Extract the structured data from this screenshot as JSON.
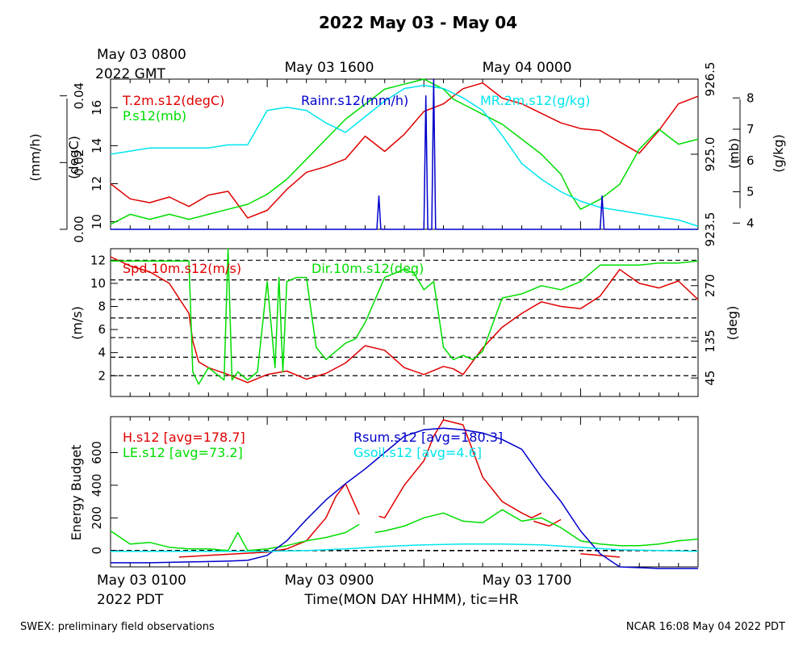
{
  "title": "2022 May 03 - May 04",
  "top_time_labels": {
    "first_line1": "May 03 0800",
    "first_line2": "2022 GMT",
    "second": "May 03 1600",
    "third": "May 04 0000"
  },
  "bottom_time_labels": {
    "first_line1": "May 03 0100",
    "first_line2": "2022 PDT",
    "second": "May 03 0900",
    "third": "May 03 1700"
  },
  "xlabel": "Time(MON DAY HHMM), tic=HR",
  "footer_left": "SWEX: preliminary field observations",
  "footer_right": "NCAR 16:08 May 04 2022 PDT",
  "colors": {
    "red": "#e00000",
    "green": "#00dd00",
    "blue": "#0000cc",
    "cyan": "#00e5ee",
    "black": "#000000"
  },
  "chart_data": [
    {
      "type": "line",
      "panel": "top",
      "time_unit": "hours since May 03 0100 PDT",
      "xlim": [
        0,
        30
      ],
      "axes": {
        "rain": {
          "label": "(mm/h)",
          "ylim": [
            0,
            0.045
          ],
          "ticks": [
            "0.00",
            "0.02",
            "0.04"
          ]
        },
        "temp": {
          "label": "(degC)",
          "ylim": [
            9.6,
            17.5
          ],
          "ticks": [
            "10",
            "12",
            "14",
            "16"
          ]
        },
        "pres": {
          "label": "(mb)",
          "ylim": [
            923.5,
            926.5
          ],
          "ticks": [
            "923.5",
            "925.0",
            "926.5"
          ]
        },
        "mr": {
          "label": "(g/kg)",
          "ylim": [
            3.8,
            8.6
          ],
          "ticks": [
            "4",
            "5",
            "6",
            "7",
            "8"
          ]
        }
      },
      "series": [
        {
          "name": "T.2m.s12(degC)",
          "axis": "temp",
          "color": "red",
          "x": [
            0,
            1,
            2,
            3,
            4,
            5,
            6,
            7,
            8,
            9,
            10,
            11,
            12,
            13,
            14,
            15,
            16,
            17,
            18,
            19,
            20,
            21,
            22,
            23,
            24,
            25,
            26,
            27,
            28,
            29,
            30
          ],
          "y": [
            12.0,
            11.2,
            11.0,
            11.3,
            10.8,
            11.4,
            11.6,
            10.2,
            10.6,
            11.7,
            12.6,
            12.9,
            13.3,
            14.5,
            13.7,
            14.6,
            15.8,
            16.2,
            17.0,
            17.3,
            16.5,
            16.2,
            15.7,
            15.2,
            14.9,
            14.8,
            14.2,
            13.6,
            14.8,
            16.2,
            16.6
          ]
        },
        {
          "name": "P.s12(mb)",
          "axis": "pres",
          "color": "green",
          "x": [
            0,
            1,
            2,
            3,
            4,
            5,
            6,
            7,
            8,
            9,
            10,
            11,
            12,
            13,
            14,
            15,
            16,
            17,
            17.5,
            18,
            19,
            20,
            21,
            22,
            23,
            23.5,
            24,
            25,
            26,
            27,
            28,
            29,
            30
          ],
          "y": [
            923.6,
            923.8,
            923.7,
            923.8,
            923.7,
            923.8,
            923.9,
            924.0,
            924.2,
            924.5,
            924.9,
            925.3,
            925.7,
            926.0,
            926.3,
            926.4,
            926.5,
            926.3,
            926.1,
            926.0,
            925.8,
            925.6,
            925.3,
            925.0,
            924.6,
            924.2,
            923.9,
            924.1,
            924.4,
            925.1,
            925.5,
            925.2,
            925.3
          ]
        },
        {
          "name": "MR.2m.s12(g/kg)",
          "axis": "mr",
          "color": "cyan",
          "x": [
            0,
            1,
            2,
            3,
            4,
            5,
            6,
            7,
            8,
            9,
            10,
            11,
            12,
            13,
            14,
            15,
            16,
            17,
            18,
            19,
            20,
            21,
            22,
            23,
            24,
            25,
            26,
            27,
            28,
            29,
            30
          ],
          "y": [
            6.2,
            6.3,
            6.4,
            6.4,
            6.4,
            6.4,
            6.5,
            6.5,
            7.6,
            7.7,
            7.6,
            7.2,
            6.9,
            7.4,
            7.9,
            8.3,
            8.4,
            8.3,
            8.0,
            7.6,
            6.8,
            5.9,
            5.4,
            5.0,
            4.7,
            4.5,
            4.4,
            4.3,
            4.2,
            4.1,
            3.9
          ]
        },
        {
          "name": "Rainr.s12(mm/h)",
          "axis": "rain",
          "color": "blue",
          "x": [
            0,
            13.6,
            13.7,
            13.8,
            16.0,
            16.1,
            16.2,
            16.4,
            16.5,
            16.6,
            25.0,
            25.1,
            25.2,
            30
          ],
          "y": [
            0,
            0,
            0.01,
            0,
            0,
            0.04,
            0,
            0,
            0.045,
            0,
            0,
            0.01,
            0,
            0
          ]
        }
      ],
      "legend": [
        {
          "text": "T.2m.s12(degC)",
          "color": "red"
        },
        {
          "text": "P.s12(mb)",
          "color": "green"
        },
        {
          "text": "Rainr.s12(mm/h)",
          "color": "blue"
        },
        {
          "text": "MR.2m.s12(g/kg)",
          "color": "cyan"
        }
      ]
    },
    {
      "type": "line",
      "panel": "middle",
      "time_unit": "hours since May 03 0100 PDT",
      "xlim": [
        0,
        30
      ],
      "axes": {
        "spd": {
          "label": "(m/s)",
          "ylim": [
            0.2,
            13.0
          ],
          "ticks": [
            "2",
            "4",
            "6",
            "8",
            "10",
            "12"
          ]
        },
        "dir": {
          "label": "(deg)",
          "ylim": [
            0,
            360
          ],
          "ticks": [
            "45",
            "135",
            "270"
          ]
        }
      },
      "grid_dashed_ms": [
        2,
        3.6,
        5.3,
        7.0,
        8.6,
        10.3,
        12.0
      ],
      "series": [
        {
          "name": "Spd.10m.s12(m/s)",
          "axis": "spd",
          "color": "red",
          "x": [
            0,
            1,
            2,
            3,
            4,
            4.2,
            4.5,
            5,
            6,
            7,
            8,
            9,
            10,
            11,
            12,
            13,
            14,
            15,
            16,
            17,
            17.5,
            18,
            19,
            20,
            21,
            22,
            23,
            24,
            25,
            26,
            27,
            28,
            29,
            30
          ],
          "y": [
            12.3,
            11.5,
            11.0,
            10.0,
            7.4,
            5.0,
            3.2,
            2.7,
            2.1,
            1.4,
            2.1,
            2.4,
            1.7,
            2.2,
            3.1,
            4.6,
            4.2,
            2.7,
            2.1,
            2.8,
            2.6,
            2.1,
            4.4,
            6.2,
            7.4,
            8.4,
            8.0,
            7.8,
            8.9,
            11.2,
            10.0,
            9.6,
            10.2,
            8.6
          ]
        },
        {
          "name": "Dir.10m.s12(deg)",
          "axis": "dir",
          "color": "green",
          "x": [
            0,
            1,
            2,
            3,
            4,
            4.2,
            4.5,
            5,
            5.8,
            6,
            6.2,
            6.5,
            7,
            7.5,
            8,
            8.4,
            8.6,
            8.8,
            9,
            9.5,
            10,
            10.5,
            11,
            11.5,
            12,
            12.5,
            13,
            14,
            15,
            15.5,
            16,
            16.5,
            17,
            17.5,
            18,
            18.5,
            19,
            20,
            21,
            22,
            23,
            24,
            25,
            26,
            27,
            28,
            29,
            30
          ],
          "y": [
            330,
            330,
            330,
            330,
            330,
            60,
            30,
            70,
            40,
            360,
            40,
            60,
            40,
            60,
            280,
            70,
            290,
            60,
            280,
            290,
            290,
            120,
            90,
            110,
            130,
            140,
            180,
            290,
            310,
            300,
            260,
            280,
            120,
            90,
            100,
            90,
            110,
            240,
            250,
            270,
            260,
            280,
            320,
            320,
            320,
            325,
            325,
            330
          ]
        }
      ],
      "legend": [
        {
          "text": "Spd.10m.s12(m/s)",
          "color": "red"
        },
        {
          "text": "Dir.10m.s12(deg)",
          "color": "green"
        }
      ]
    },
    {
      "type": "line",
      "panel": "bottom",
      "time_unit": "hours since May 03 0100 PDT",
      "xlim": [
        0,
        30
      ],
      "ylabel": "Energy Budget",
      "ylim": [
        -100,
        820
      ],
      "yticks": [
        "0",
        "200",
        "400",
        "600"
      ],
      "series": [
        {
          "name": "H.s12 [avg=178.7]",
          "color": "red",
          "segments": [
            {
              "x": [
                3.5,
                5,
                6.5,
                8,
                9,
                10,
                11,
                11.5,
                12,
                12.7
              ],
              "y": [
                -40,
                -30,
                -20,
                -10,
                10,
                60,
                200,
                330,
                410,
                220
              ]
            },
            {
              "x": [
                13.7,
                14,
                15,
                16,
                16.5,
                17,
                18,
                19,
                20,
                21,
                21.5,
                22
              ],
              "y": [
                210,
                200,
                400,
                550,
                700,
                800,
                770,
                450,
                300,
                230,
                200,
                230
              ]
            },
            {
              "x": [
                21.6,
                22.4,
                23
              ],
              "y": [
                180,
                150,
                190
              ]
            },
            {
              "x": [
                24,
                26
              ],
              "y": [
                -20,
                -40
              ]
            }
          ]
        },
        {
          "name": "LE.s12 [avg=73.2]",
          "color": "green",
          "segments": [
            {
              "x": [
                0,
                1,
                2,
                3,
                4,
                5,
                6,
                6.5,
                7,
                8,
                9,
                10,
                11,
                12,
                12.7
              ],
              "y": [
                120,
                40,
                50,
                20,
                10,
                10,
                0,
                110,
                0,
                10,
                30,
                60,
                80,
                110,
                160
              ]
            },
            {
              "x": [
                13.5,
                14,
                15,
                16,
                17,
                18,
                19,
                20,
                21,
                22,
                23,
                24,
                25,
                26,
                27,
                28,
                29,
                30
              ],
              "y": [
                110,
                120,
                150,
                200,
                230,
                180,
                170,
                250,
                180,
                200,
                140,
                60,
                40,
                30,
                30,
                40,
                60,
                70
              ]
            }
          ]
        },
        {
          "name": "Rsum.s12 [avg=180.3]",
          "color": "blue",
          "segments": [
            {
              "x": [
                0,
                2,
                4,
                6,
                7,
                8,
                9,
                10,
                11,
                12,
                13,
                14,
                15,
                16,
                17,
                18,
                19,
                20,
                21,
                22,
                23,
                24,
                25,
                26,
                28,
                30
              ],
              "y": [
                -75,
                -75,
                -70,
                -65,
                -60,
                -30,
                60,
                190,
                310,
                410,
                500,
                600,
                700,
                740,
                750,
                740,
                720,
                680,
                620,
                450,
                300,
                120,
                -20,
                -100,
                -110,
                -110
              ]
            }
          ]
        },
        {
          "name": "Gsoil.s12 [avg=4.6]",
          "color": "cyan",
          "segments": [
            {
              "x": [
                0,
                4,
                8,
                10,
                12,
                14,
                16,
                18,
                20,
                22,
                24,
                26,
                30
              ],
              "y": [
                -5,
                -5,
                -5,
                0,
                10,
                25,
                35,
                40,
                40,
                35,
                20,
                5,
                -5
              ]
            }
          ]
        }
      ],
      "legend": [
        {
          "text": "H.s12 [avg=178.7]",
          "color": "red"
        },
        {
          "text": "LE.s12 [avg=73.2]",
          "color": "green"
        },
        {
          "text": "Rsum.s12 [avg=180.3]",
          "color": "blue"
        },
        {
          "text": "Gsoil.s12 [avg=4.6]",
          "color": "cyan"
        }
      ]
    }
  ]
}
